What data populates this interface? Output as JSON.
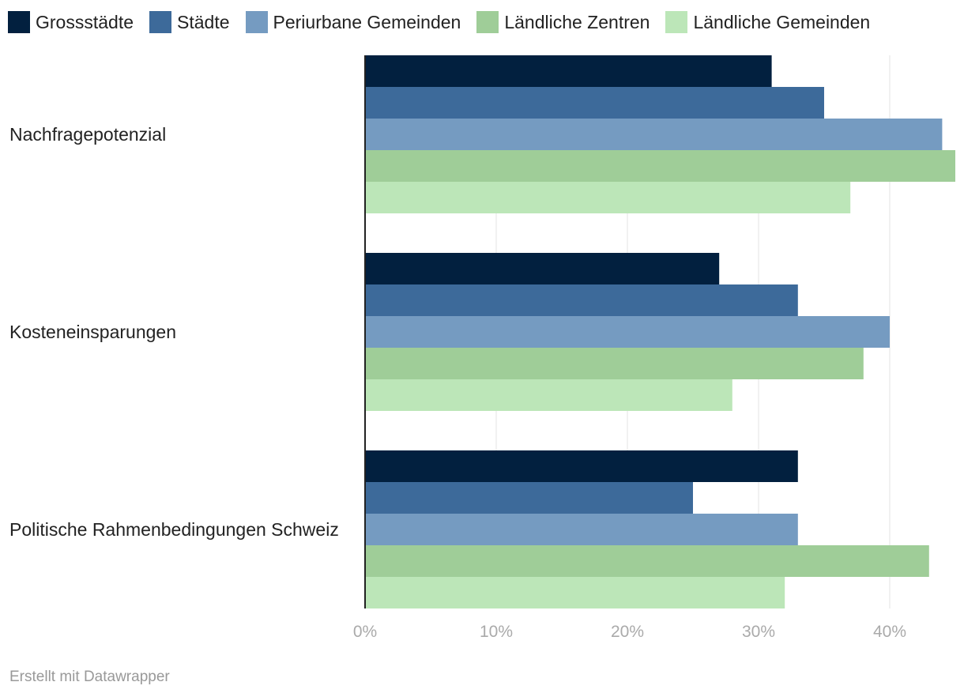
{
  "chart_data": {
    "type": "bar",
    "orientation": "horizontal",
    "categories": [
      "Nachfragepotenzial",
      "Kosteneinsparungen",
      "Politische Rahmenbedingungen Schweiz"
    ],
    "series": [
      {
        "name": "Grossstädte",
        "color": "#02203f",
        "values": [
          31,
          27,
          33
        ]
      },
      {
        "name": "Städte",
        "color": "#3d6a9a",
        "values": [
          35,
          33,
          25
        ]
      },
      {
        "name": "Periurbane Gemeinden",
        "color": "#759bc1",
        "values": [
          44,
          40,
          33
        ]
      },
      {
        "name": "Ländliche Zentren",
        "color": "#9fcd98",
        "values": [
          45,
          38,
          43
        ]
      },
      {
        "name": "Ländliche Gemeinden",
        "color": "#bce6b8",
        "values": [
          37,
          28,
          32
        ]
      }
    ],
    "x_ticks": [
      0,
      10,
      20,
      30,
      40
    ],
    "x_tick_labels": [
      "0%",
      "10%",
      "20%",
      "30%",
      "40%"
    ],
    "xlim": [
      0,
      45
    ],
    "grid": true,
    "legend": "top-left"
  },
  "footer": {
    "credit": "Erstellt mit Datawrapper"
  }
}
